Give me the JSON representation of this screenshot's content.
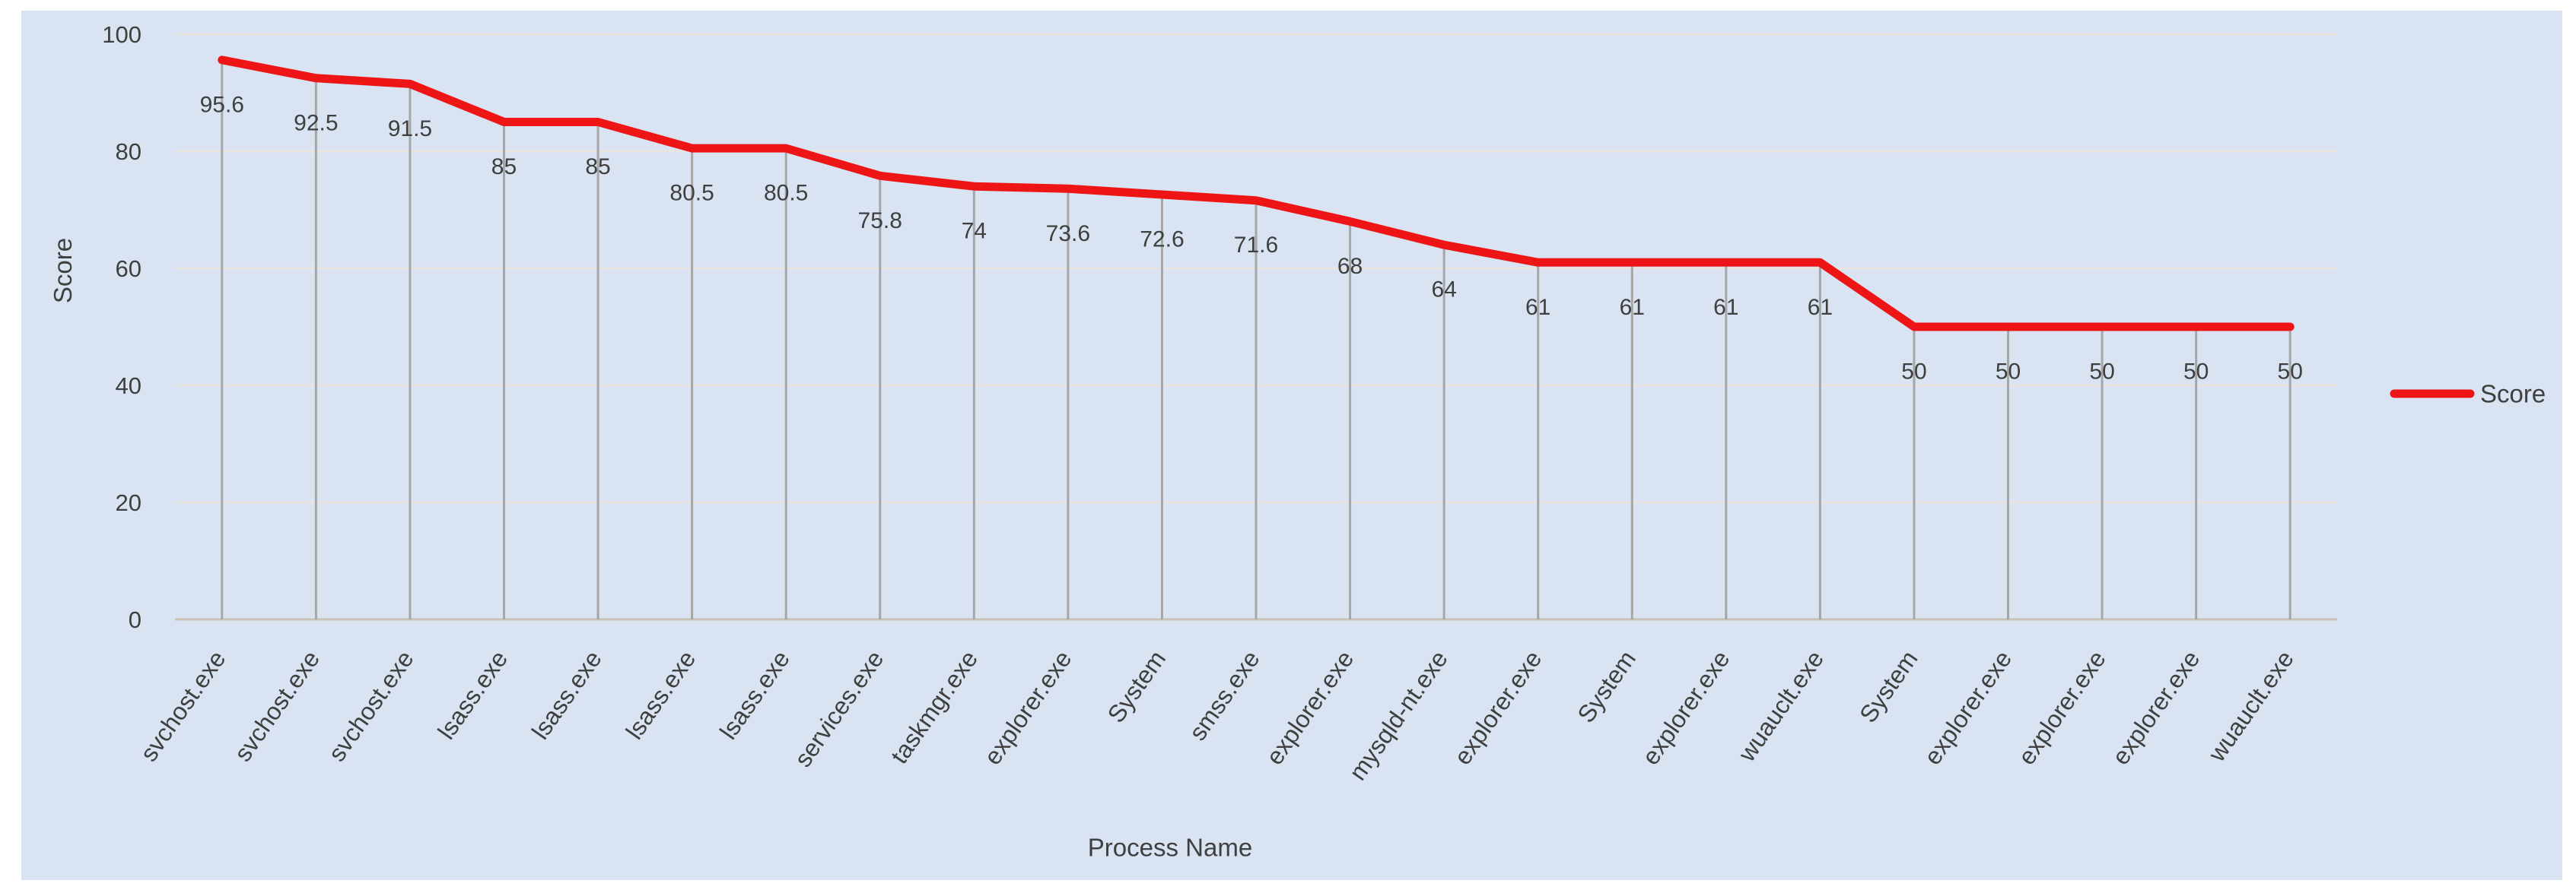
{
  "chart_data": {
    "type": "line",
    "title": "",
    "xlabel": "Process Name",
    "ylabel": "Score",
    "ylim": [
      0,
      100
    ],
    "yticks": [
      0,
      20,
      40,
      60,
      80,
      100
    ],
    "grid": "horizontal",
    "drop_lines": true,
    "data_labels": true,
    "legend": {
      "position": "right",
      "entries": [
        "Score"
      ]
    },
    "categories": [
      "svchost.exe",
      "svchost.exe",
      "svchost.exe",
      "lsass.exe",
      "lsass.exe",
      "lsass.exe",
      "lsass.exe",
      "services.exe",
      "taskmgr.exe",
      "explorer.exe",
      "System",
      "smss.exe",
      "explorer.exe",
      "mysqld-nt.exe",
      "explorer.exe",
      "System",
      "explorer.exe",
      "wuauclt.exe",
      "System",
      "explorer.exe",
      "explorer.exe",
      "explorer.exe",
      "wuauclt.exe"
    ],
    "series": [
      {
        "name": "Score",
        "values": [
          95.6,
          92.5,
          91.5,
          85,
          85,
          80.5,
          80.5,
          75.8,
          74,
          73.6,
          72.6,
          71.6,
          68,
          64,
          61,
          61,
          61,
          61,
          50,
          50,
          50,
          50,
          50
        ]
      }
    ]
  },
  "colors": {
    "panel_background": "#d9e3f2",
    "page_background": "#ffffff",
    "series_line": "#ed1515",
    "gridline": "#e9e5dd",
    "axis_line": "#c9c2b5",
    "drop_line": "#a6a6a6",
    "text": "#3f3f3f"
  }
}
